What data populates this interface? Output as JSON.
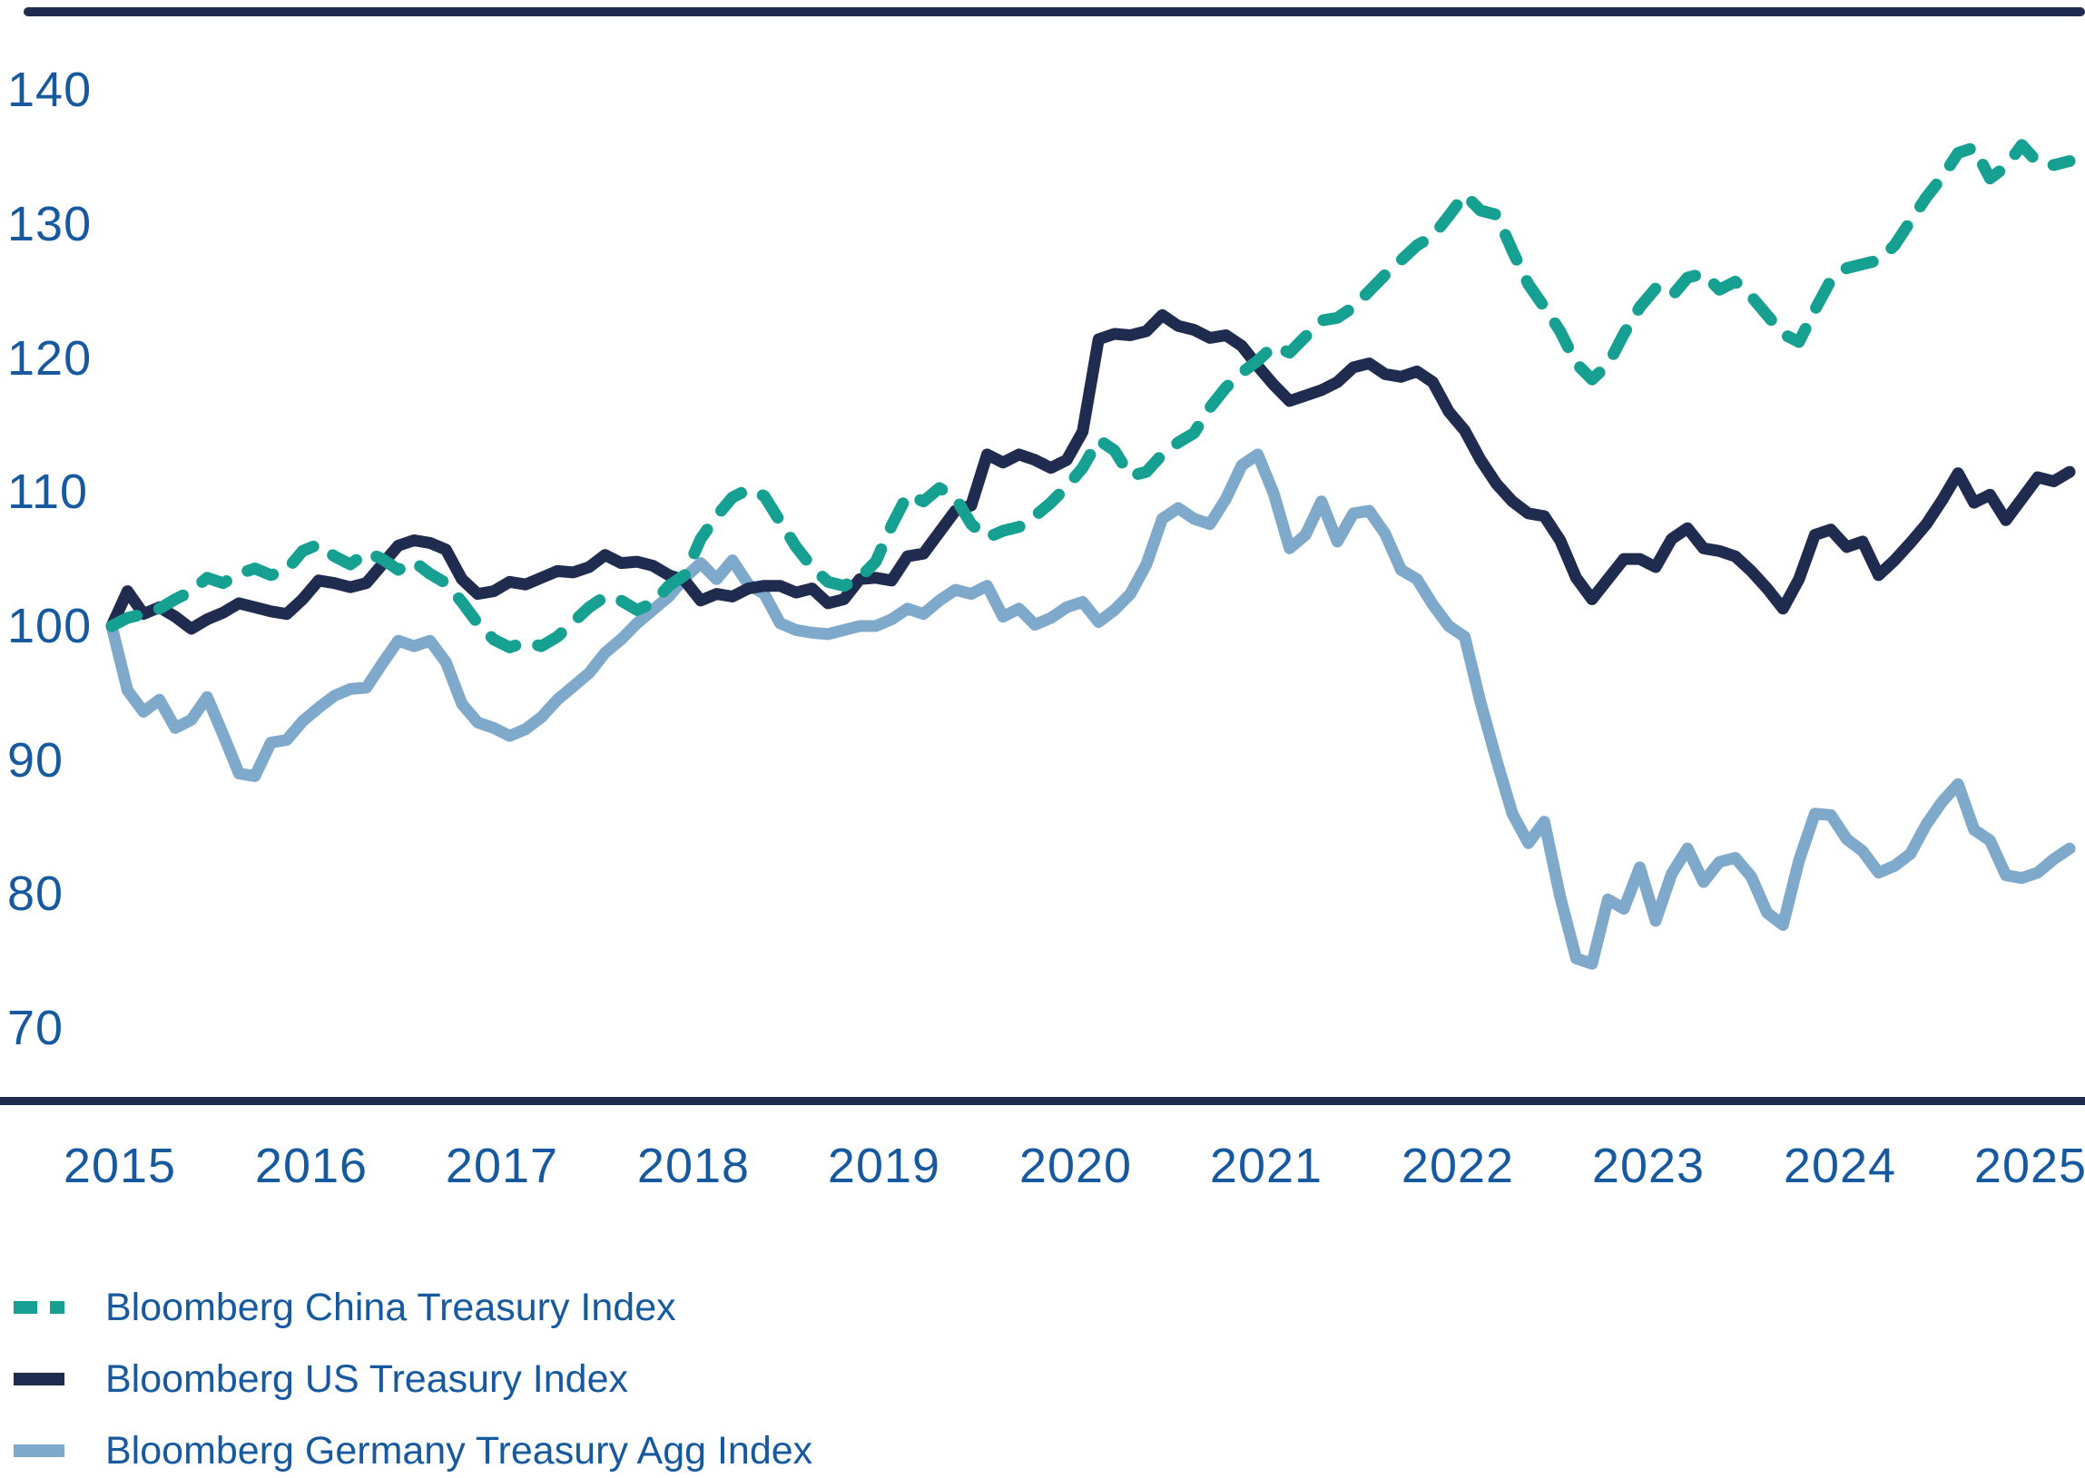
{
  "chart_data": {
    "type": "line",
    "title": "",
    "frequency": "monthly",
    "x_range": [
      "2015-01",
      "2025-04"
    ],
    "x_tick_labels": [
      "2015",
      "2016",
      "2017",
      "2018",
      "2019",
      "2020",
      "2021",
      "2022",
      "2023",
      "2024",
      "2025"
    ],
    "y_tick_labels": [
      "140",
      "130",
      "120",
      "110",
      "100",
      "90",
      "80",
      "70"
    ],
    "y_tick_values": [
      140,
      130,
      120,
      110,
      100,
      90,
      80,
      70
    ],
    "ylim": [
      66,
      144
    ],
    "grid": false,
    "baseline_value": 100,
    "legend_position": "bottom-left",
    "series": [
      {
        "name": "Bloomberg China Treasury Index",
        "id": "china",
        "color": "#16A092",
        "style": "dashed",
        "values": [
          100.0,
          100.6,
          100.9,
          101.3,
          102.0,
          102.6,
          103.6,
          103.2,
          103.9,
          104.3,
          103.8,
          104.2,
          105.6,
          106.1,
          105.2,
          104.6,
          105.5,
          105.0,
          104.2,
          104.8,
          103.9,
          103.2,
          101.8,
          100.2,
          99.0,
          98.4,
          98.8,
          98.5,
          99.2,
          100.3,
          101.4,
          102.2,
          101.9,
          101.2,
          101.7,
          103.0,
          103.8,
          106.5,
          108.2,
          109.6,
          110.2,
          109.7,
          107.8,
          105.9,
          104.4,
          103.3,
          103.0,
          103.6,
          104.8,
          107.5,
          109.8,
          109.3,
          110.3,
          109.6,
          107.6,
          106.6,
          107.1,
          107.4,
          108.2,
          109.2,
          110.4,
          111.8,
          113.9,
          113.1,
          111.2,
          111.5,
          112.8,
          113.7,
          114.4,
          116.3,
          117.8,
          118.9,
          119.8,
          120.9,
          120.4,
          121.6,
          122.8,
          123.0,
          123.8,
          125.0,
          126.2,
          127.3,
          128.4,
          129.1,
          130.6,
          132.2,
          131.0,
          130.7,
          128.0,
          125.5,
          123.8,
          122.0,
          119.6,
          118.4,
          119.5,
          121.8,
          123.8,
          125.2,
          124.6,
          126.0,
          126.3,
          125.1,
          125.7,
          124.6,
          123.2,
          121.8,
          121.2,
          123.6,
          125.8,
          126.7,
          127.0,
          127.3,
          128.4,
          130.2,
          132.0,
          133.5,
          135.3,
          135.7,
          133.4,
          134.3,
          135.9,
          134.6,
          134.4,
          134.7
        ]
      },
      {
        "name": "Bloomberg US Treasury Index",
        "id": "us",
        "color": "#1F2C4F",
        "style": "solid",
        "values": [
          100.0,
          102.6,
          100.9,
          101.4,
          100.7,
          99.8,
          100.5,
          101.0,
          101.7,
          101.4,
          101.1,
          100.9,
          102.0,
          103.4,
          103.2,
          102.9,
          103.2,
          104.6,
          106.0,
          106.4,
          106.2,
          105.7,
          103.5,
          102.4,
          102.6,
          103.3,
          103.1,
          103.6,
          104.1,
          104.0,
          104.4,
          105.3,
          104.7,
          104.8,
          104.5,
          103.8,
          103.4,
          101.9,
          102.4,
          102.2,
          102.8,
          103.0,
          103.0,
          102.5,
          102.8,
          101.7,
          102.0,
          103.5,
          103.6,
          103.4,
          105.2,
          105.4,
          107.0,
          108.6,
          109.0,
          112.8,
          112.2,
          112.8,
          112.4,
          111.8,
          112.4,
          114.5,
          121.4,
          121.8,
          121.7,
          122.0,
          123.2,
          122.4,
          122.1,
          121.5,
          121.7,
          120.9,
          119.4,
          118.0,
          116.8,
          117.2,
          117.6,
          118.2,
          119.3,
          119.6,
          118.8,
          118.6,
          119.0,
          118.2,
          116.0,
          114.6,
          112.4,
          110.6,
          109.3,
          108.4,
          108.2,
          106.4,
          103.6,
          102.0,
          103.5,
          105.0,
          105.0,
          104.4,
          106.5,
          107.3,
          105.8,
          105.6,
          105.2,
          104.1,
          102.8,
          101.3,
          103.5,
          106.8,
          107.2,
          105.9,
          106.3,
          103.8,
          104.9,
          106.2,
          107.6,
          109.4,
          111.4,
          109.2,
          109.8,
          107.9,
          109.5,
          111.1,
          110.8,
          111.5
        ]
      },
      {
        "name": "Bloomberg Germany Treasury Agg Index",
        "id": "germany",
        "color": "#7FA9CB",
        "style": "solid",
        "values": [
          100.0,
          95.2,
          93.6,
          94.5,
          92.4,
          93.0,
          94.7,
          91.9,
          89.0,
          88.8,
          91.3,
          91.5,
          92.9,
          93.9,
          94.8,
          95.3,
          95.4,
          97.2,
          98.9,
          98.5,
          98.9,
          97.3,
          94.2,
          92.8,
          92.4,
          91.8,
          92.3,
          93.2,
          94.5,
          95.5,
          96.5,
          98.0,
          99.0,
          100.2,
          101.2,
          102.2,
          103.6,
          104.7,
          103.5,
          104.9,
          103.1,
          102.4,
          100.2,
          99.7,
          99.5,
          99.4,
          99.7,
          100.0,
          100.0,
          100.5,
          101.3,
          100.9,
          101.9,
          102.7,
          102.4,
          103.0,
          100.7,
          101.3,
          100.1,
          100.6,
          101.4,
          101.8,
          100.3,
          101.2,
          102.4,
          104.6,
          108.0,
          108.8,
          108.0,
          107.6,
          109.5,
          112.0,
          112.8,
          109.9,
          105.8,
          106.8,
          109.3,
          106.3,
          108.4,
          108.6,
          106.9,
          104.2,
          103.5,
          101.6,
          100.0,
          99.2,
          94.3,
          90.0,
          86.0,
          83.8,
          85.4,
          79.8,
          75.2,
          74.8,
          79.6,
          78.9,
          82.0,
          78.0,
          81.5,
          83.4,
          80.9,
          82.4,
          82.7,
          81.3,
          78.6,
          77.7,
          82.5,
          86.0,
          85.9,
          84.1,
          83.2,
          81.6,
          82.1,
          83.0,
          85.2,
          86.9,
          88.2,
          84.8,
          84.0,
          81.4,
          81.2,
          81.6,
          82.6,
          83.4
        ]
      }
    ]
  },
  "colors": {
    "text_blue": "#17599F",
    "axis_navy": "#1F2C4F",
    "china_teal": "#16A092",
    "us_navy": "#1F2C4F",
    "germany_blue": "#7FA9CB",
    "background": "#FFFFFF"
  }
}
